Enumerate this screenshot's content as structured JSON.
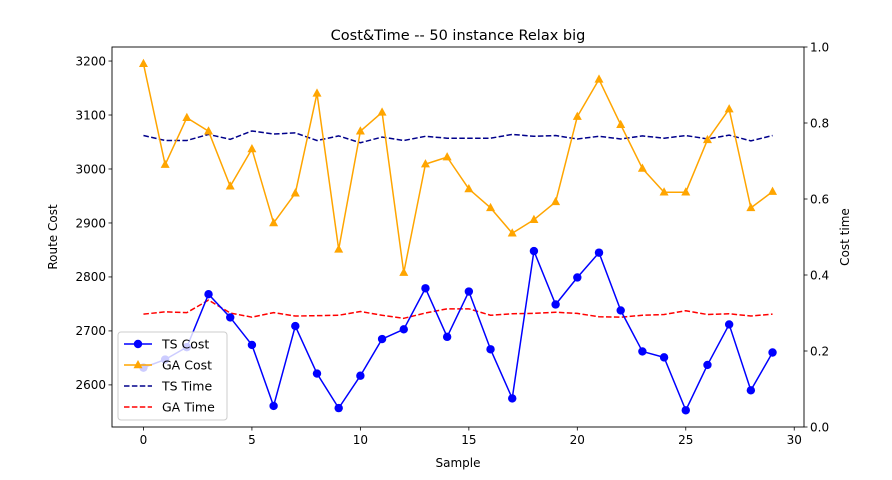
{
  "chart_data": {
    "type": "line",
    "title": "Cost&Time -- 50 instance Relax big",
    "xlabel": "Sample",
    "ylabel": "Route Cost",
    "ylabel_right": "Cost time",
    "xlim": [
      -1.45,
      30.45
    ],
    "ylim": [
      2522,
      3226
    ],
    "ylim_right": [
      0.0,
      1.0
    ],
    "xticks": [
      0,
      5,
      10,
      15,
      20,
      25,
      30
    ],
    "yticks": [
      2600,
      2700,
      2800,
      2900,
      3000,
      3100,
      3200
    ],
    "yticks_right": [
      0.0,
      0.2,
      0.4,
      0.6,
      0.8,
      1.0
    ],
    "grid": false,
    "legend_position": "lower-left",
    "x": [
      0,
      1,
      2,
      3,
      4,
      5,
      6,
      7,
      8,
      9,
      10,
      11,
      12,
      13,
      14,
      15,
      16,
      17,
      18,
      19,
      20,
      21,
      22,
      23,
      24,
      25,
      26,
      27,
      28,
      29
    ],
    "series": [
      {
        "name": "TS Cost",
        "axis": "left",
        "color": "#0000ff",
        "linestyle": "solid",
        "marker": "circle",
        "values": [
          2632,
          2647,
          2670,
          2768,
          2725,
          2674,
          2561,
          2709,
          2621,
          2557,
          2617,
          2685,
          2703,
          2779,
          2689,
          2773,
          2666,
          2575,
          2848,
          2749,
          2799,
          2845,
          2738,
          2662,
          2651,
          2553,
          2637,
          2712,
          2590,
          2660
        ]
      },
      {
        "name": "GA Cost",
        "axis": "left",
        "color": "#ffa500",
        "linestyle": "solid",
        "marker": "triangle",
        "values": [
          3195,
          3008,
          3095,
          3070,
          2968,
          3037,
          2900,
          2955,
          3140,
          2851,
          3070,
          3105,
          2808,
          3009,
          3022,
          2963,
          2928,
          2881,
          2906,
          2939,
          3097,
          3166,
          3082,
          3001,
          2957,
          2957,
          3054,
          3111,
          2928,
          2958
        ]
      },
      {
        "name": "TS Time",
        "axis": "right",
        "color": "#00008b",
        "linestyle": "dashed",
        "marker": "none",
        "values": [
          0.767,
          0.754,
          0.754,
          0.77,
          0.757,
          0.779,
          0.771,
          0.774,
          0.754,
          0.766,
          0.748,
          0.763,
          0.754,
          0.765,
          0.76,
          0.76,
          0.76,
          0.77,
          0.765,
          0.767,
          0.758,
          0.765,
          0.758,
          0.766,
          0.76,
          0.767,
          0.758,
          0.768,
          0.753,
          0.767
        ]
      },
      {
        "name": "GA Time",
        "axis": "right",
        "color": "#ff0000",
        "linestyle": "dashed",
        "marker": "none",
        "values": [
          0.297,
          0.303,
          0.301,
          0.334,
          0.3,
          0.289,
          0.301,
          0.292,
          0.293,
          0.294,
          0.304,
          0.294,
          0.286,
          0.3,
          0.311,
          0.311,
          0.294,
          0.298,
          0.299,
          0.302,
          0.299,
          0.29,
          0.289,
          0.294,
          0.296,
          0.306,
          0.296,
          0.298,
          0.292,
          0.297
        ]
      }
    ]
  }
}
